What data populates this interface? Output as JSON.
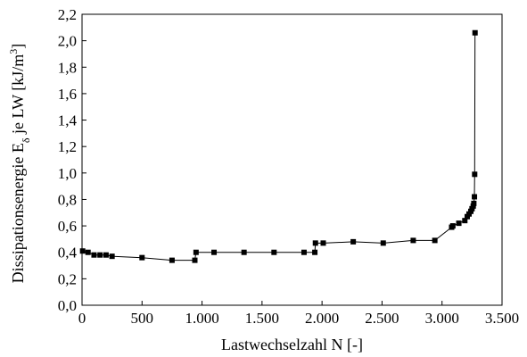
{
  "chart_data": {
    "type": "line",
    "xlabel": "Lastwechselzahl N [-]",
    "ylabel": {
      "main": "Dissipationsenergie E",
      "subscript": "δ",
      "after": " je LW [kJ/m",
      "superscript": "3",
      "close": "]"
    },
    "xlim": [
      0,
      3500
    ],
    "ylim": [
      0,
      2.2
    ],
    "x_ticks": [
      {
        "value": 0,
        "label": "0"
      },
      {
        "value": 500,
        "label": "500"
      },
      {
        "value": 1000,
        "label": "1.000"
      },
      {
        "value": 1500,
        "label": "1.500"
      },
      {
        "value": 2000,
        "label": "2.000"
      },
      {
        "value": 2500,
        "label": "2.500"
      },
      {
        "value": 3000,
        "label": "3.000"
      },
      {
        "value": 3500,
        "label": "3.500"
      }
    ],
    "y_ticks": [
      {
        "value": 0,
        "label": "0,0"
      },
      {
        "value": 0.2,
        "label": "0,2"
      },
      {
        "value": 0.4,
        "label": "0,4"
      },
      {
        "value": 0.6,
        "label": "0,6"
      },
      {
        "value": 0.8,
        "label": "0,8"
      },
      {
        "value": 1.0,
        "label": "1,0"
      },
      {
        "value": 1.2,
        "label": "1,2"
      },
      {
        "value": 1.4,
        "label": "1,4"
      },
      {
        "value": 1.6,
        "label": "1,6"
      },
      {
        "value": 1.8,
        "label": "1,8"
      },
      {
        "value": 2.0,
        "label": "2,0"
      },
      {
        "value": 2.2,
        "label": "2,2"
      }
    ],
    "grid": false,
    "series": [
      {
        "color": "#000000",
        "marker": "square",
        "points": [
          {
            "x": 5,
            "y": 0.41
          },
          {
            "x": 50,
            "y": 0.4
          },
          {
            "x": 100,
            "y": 0.38
          },
          {
            "x": 150,
            "y": 0.38
          },
          {
            "x": 200,
            "y": 0.38
          },
          {
            "x": 250,
            "y": 0.37
          },
          {
            "x": 500,
            "y": 0.36
          },
          {
            "x": 750,
            "y": 0.34
          },
          {
            "x": 940,
            "y": 0.34
          },
          {
            "x": 950,
            "y": 0.4
          },
          {
            "x": 1100,
            "y": 0.4
          },
          {
            "x": 1350,
            "y": 0.4
          },
          {
            "x": 1600,
            "y": 0.4
          },
          {
            "x": 1850,
            "y": 0.4
          },
          {
            "x": 1940,
            "y": 0.4
          },
          {
            "x": 1945,
            "y": 0.47
          },
          {
            "x": 2010,
            "y": 0.47
          },
          {
            "x": 2260,
            "y": 0.48
          },
          {
            "x": 2510,
            "y": 0.47
          },
          {
            "x": 2760,
            "y": 0.49
          },
          {
            "x": 2940,
            "y": 0.49
          },
          {
            "x": 3080,
            "y": 0.59
          },
          {
            "x": 3090,
            "y": 0.6
          },
          {
            "x": 3140,
            "y": 0.62
          },
          {
            "x": 3190,
            "y": 0.64
          },
          {
            "x": 3210,
            "y": 0.67
          },
          {
            "x": 3225,
            "y": 0.69
          },
          {
            "x": 3240,
            "y": 0.71
          },
          {
            "x": 3250,
            "y": 0.73
          },
          {
            "x": 3260,
            "y": 0.75
          },
          {
            "x": 3265,
            "y": 0.77
          },
          {
            "x": 3270,
            "y": 0.82
          },
          {
            "x": 3272,
            "y": 0.99
          },
          {
            "x": 3275,
            "y": 2.06
          }
        ]
      }
    ]
  }
}
